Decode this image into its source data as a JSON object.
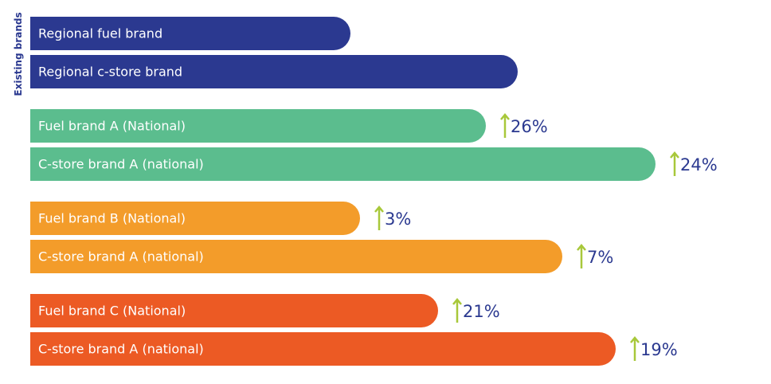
{
  "chart_data": {
    "type": "bar",
    "group_label": "Existing brands",
    "categories": [
      "Regional fuel brand",
      "Regional c-store brand",
      "Fuel brand A (National)",
      "C-store brand A (national)",
      "Fuel brand B (National)",
      "C-store brand A (national)",
      "Fuel brand C (National)",
      "C-store brand A (national)"
    ],
    "values": [
      402,
      612,
      572,
      785,
      414,
      668,
      512,
      735
    ],
    "colors": [
      "#2b3990",
      "#2b3990",
      "#5bbd8e",
      "#5bbd8e",
      "#f39c2a",
      "#f39c2a",
      "#ec5a24",
      "#ec5a24"
    ],
    "xlim": [
      0,
      900
    ],
    "changes": {
      "values": [
        null,
        null,
        26,
        24,
        3,
        7,
        21,
        19
      ],
      "value_labels": [
        null,
        null,
        "26%",
        "24%",
        "3%",
        "7%",
        "21%",
        "19%"
      ],
      "arrow_color": "#a8c83a"
    }
  }
}
